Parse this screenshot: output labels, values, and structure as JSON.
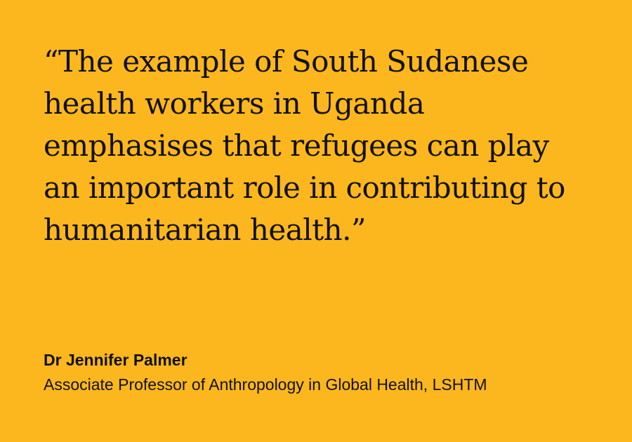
{
  "quote": {
    "lines": [
      "“The example of South Sudanese",
      "health workers in Uganda",
      "emphasises that refugees can play",
      "an important role in contributing to",
      "humanitarian health.”"
    ]
  },
  "attribution": {
    "name": "Dr Jennifer Palmer",
    "title": "Associate Professor of Anthropology in Global Health, LSHTM"
  },
  "colors": {
    "background": "#FDB71E",
    "text": "#111111"
  }
}
